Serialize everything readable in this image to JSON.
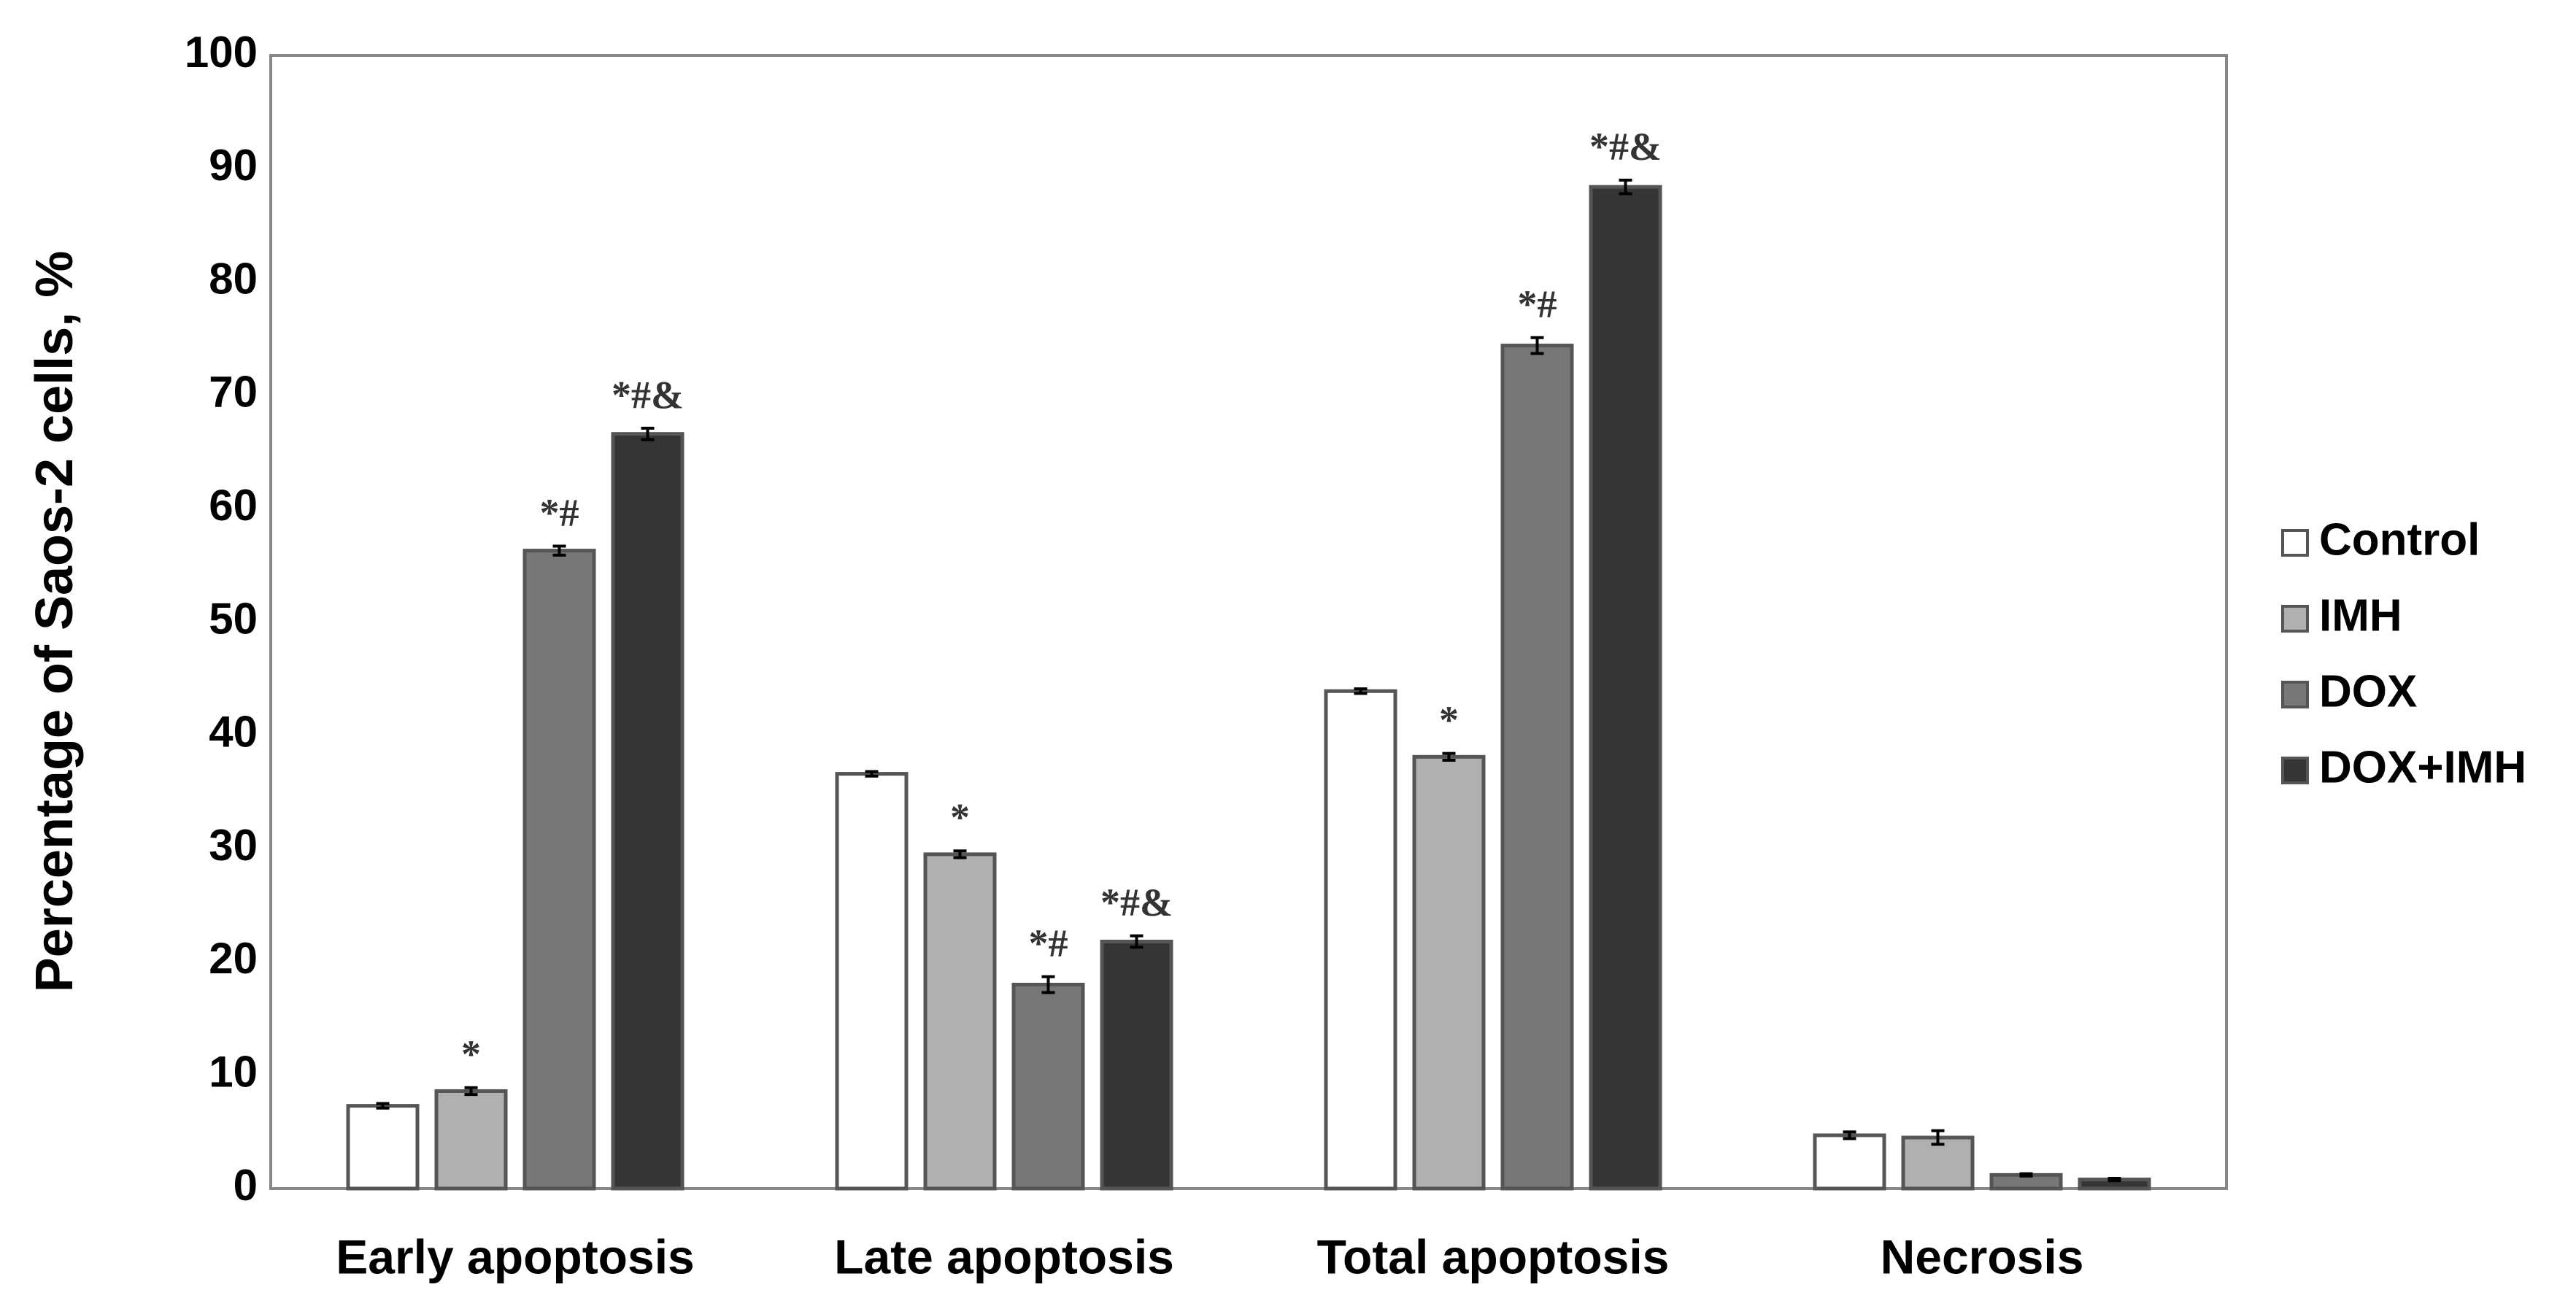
{
  "chart_data": {
    "type": "bar",
    "y_label": "Percentage of Saos-2 cells, %",
    "categories": [
      "Early apoptosis",
      "Late apoptosis",
      "Total apoptosis",
      "Necrosis"
    ],
    "series": [
      {
        "name": "Control",
        "color": "#ffffff",
        "values": [
          7.3,
          36.6,
          43.9,
          4.7
        ],
        "errors": [
          0.2,
          0.2,
          0.2,
          0.3
        ],
        "annotations": [
          null,
          null,
          null,
          null
        ]
      },
      {
        "name": "IMH",
        "color": "#b0b0b0",
        "values": [
          8.6,
          29.5,
          38.1,
          4.5
        ],
        "errors": [
          0.3,
          0.3,
          0.3,
          0.6
        ],
        "annotations": [
          "*",
          "*",
          "*",
          null
        ]
      },
      {
        "name": "DOX",
        "color": "#777777",
        "values": [
          56.3,
          18.0,
          74.4,
          1.2
        ],
        "errors": [
          0.4,
          0.7,
          0.7,
          0.1
        ],
        "annotations": [
          "*#",
          "*#",
          "*#",
          null
        ]
      },
      {
        "name": "DOX+IMH",
        "color": "#353535",
        "values": [
          66.6,
          21.8,
          88.4,
          0.8
        ],
        "errors": [
          0.5,
          0.5,
          0.6,
          0.1
        ],
        "annotations": [
          "*#&",
          "*#&",
          "*#&",
          null
        ]
      }
    ],
    "ylim": [
      0,
      100
    ],
    "yticks": [
      0,
      10,
      20,
      30,
      40,
      50,
      60,
      70,
      80,
      90,
      100
    ],
    "grid": false,
    "legend": "right"
  }
}
